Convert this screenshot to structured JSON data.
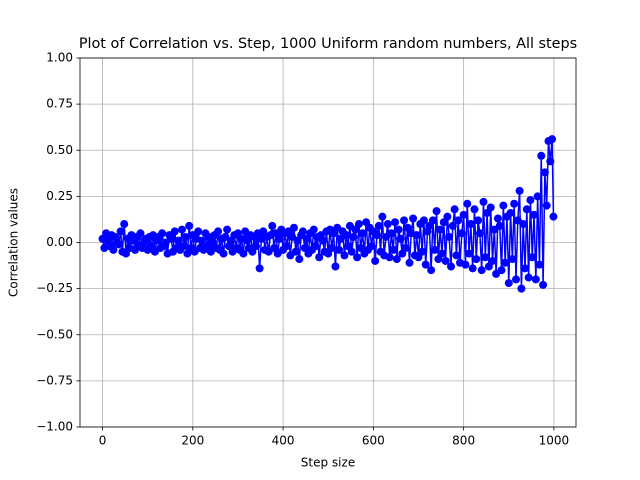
{
  "chart_data": {
    "type": "line",
    "title": "Plot of Correlation vs. Step, 1000 Uniform random numbers, All steps",
    "x_label": "Step size",
    "y_label": "Correlation values",
    "xlim": [
      -49.95,
      1048.95
    ],
    "xticks": [
      0,
      200,
      400,
      600,
      800,
      1000
    ],
    "ylim": [
      -1,
      1
    ],
    "yticks": [
      {
        "value": -1,
        "label": "−1.00"
      },
      {
        "value": -0.75,
        "label": "−0.75"
      },
      {
        "value": -0.5,
        "label": "−0.50"
      },
      {
        "value": -0.25,
        "label": "−0.25"
      },
      {
        "value": 0,
        "label": "0.00"
      },
      {
        "value": 0.25,
        "label": "0.25"
      },
      {
        "value": 0.5,
        "label": "0.50"
      },
      {
        "value": 0.75,
        "label": "0.75"
      },
      {
        "value": 1,
        "label": "1.00"
      }
    ],
    "grid": true,
    "marker": "o",
    "series": [
      {
        "color": "#0000ff",
        "x": [
          0,
          4,
          8,
          12,
          16,
          20,
          24,
          28,
          32,
          36,
          40,
          44,
          48,
          52,
          56,
          60,
          64,
          68,
          72,
          76,
          80,
          84,
          88,
          92,
          96,
          100,
          104,
          108,
          112,
          116,
          120,
          124,
          128,
          132,
          136,
          140,
          144,
          148,
          152,
          156,
          160,
          164,
          168,
          172,
          176,
          180,
          184,
          188,
          192,
          196,
          200,
          204,
          208,
          212,
          216,
          220,
          224,
          228,
          232,
          236,
          240,
          244,
          248,
          252,
          256,
          260,
          264,
          268,
          272,
          276,
          280,
          284,
          288,
          292,
          296,
          300,
          304,
          308,
          312,
          316,
          320,
          324,
          328,
          332,
          336,
          340,
          344,
          348,
          352,
          356,
          360,
          364,
          368,
          372,
          376,
          380,
          384,
          388,
          392,
          396,
          400,
          404,
          408,
          412,
          416,
          420,
          424,
          428,
          432,
          436,
          440,
          444,
          448,
          452,
          456,
          460,
          464,
          468,
          472,
          476,
          480,
          484,
          488,
          492,
          496,
          500,
          504,
          508,
          512,
          516,
          520,
          524,
          528,
          532,
          536,
          540,
          544,
          548,
          552,
          556,
          560,
          564,
          568,
          572,
          576,
          580,
          584,
          588,
          592,
          596,
          600,
          604,
          608,
          612,
          616,
          620,
          624,
          628,
          632,
          636,
          640,
          644,
          648,
          652,
          656,
          660,
          664,
          668,
          672,
          676,
          680,
          684,
          688,
          692,
          696,
          700,
          704,
          708,
          712,
          716,
          720,
          724,
          728,
          732,
          736,
          740,
          744,
          748,
          752,
          756,
          760,
          764,
          768,
          772,
          776,
          780,
          784,
          788,
          792,
          796,
          800,
          804,
          808,
          812,
          816,
          820,
          824,
          828,
          832,
          836,
          840,
          844,
          848,
          852,
          856,
          860,
          864,
          868,
          872,
          876,
          880,
          884,
          888,
          892,
          896,
          900,
          904,
          908,
          912,
          916,
          920,
          924,
          928,
          932,
          936,
          940,
          944,
          948,
          952,
          956,
          960,
          964,
          968,
          972,
          976,
          980,
          984,
          988,
          992,
          996,
          999
        ],
        "values": [
          0.02,
          -0.03,
          0.05,
          0.01,
          -0.02,
          0.04,
          -0.04,
          0.03,
          0.0,
          -0.01,
          0.06,
          -0.05,
          0.1,
          -0.06,
          0.02,
          -0.03,
          0.04,
          0.01,
          -0.04,
          0.03,
          -0.02,
          0.05,
          -0.03,
          0.0,
          0.02,
          -0.04,
          0.03,
          -0.02,
          0.04,
          -0.05,
          0.01,
          0.03,
          -0.03,
          0.05,
          -0.02,
          0.0,
          -0.06,
          0.04,
          0.02,
          -0.05,
          0.06,
          -0.03,
          0.01,
          -0.04,
          0.07,
          -0.02,
          0.03,
          -0.06,
          0.09,
          -0.03,
          0.04,
          -0.05,
          0.02,
          0.06,
          -0.03,
          0.01,
          -0.04,
          0.05,
          -0.02,
          0.03,
          -0.05,
          0.0,
          0.04,
          -0.03,
          0.06,
          -0.04,
          0.02,
          -0.06,
          0.03,
          0.07,
          -0.02,
          0.01,
          -0.05,
          0.04,
          -0.03,
          0.05,
          -0.04,
          0.02,
          -0.06,
          0.06,
          0.01,
          -0.03,
          0.04,
          -0.05,
          0.03,
          -0.02,
          0.05,
          -0.14,
          0.02,
          0.06,
          -0.04,
          0.03,
          -0.05,
          0.04,
          0.09,
          -0.03,
          0.05,
          -0.06,
          0.02,
          0.07,
          -0.04,
          0.05,
          -0.02,
          0.06,
          -0.07,
          0.03,
          0.08,
          -0.05,
          0.01,
          -0.09,
          0.04,
          0.06,
          -0.03,
          0.02,
          -0.06,
          0.05,
          -0.04,
          0.07,
          -0.02,
          0.03,
          -0.08,
          0.04,
          0.01,
          -0.05,
          0.06,
          -0.06,
          0.07,
          -0.03,
          0.05,
          -0.13,
          0.08,
          -0.04,
          0.02,
          0.06,
          -0.07,
          0.04,
          -0.02,
          0.09,
          -0.05,
          0.03,
          0.07,
          -0.08,
          0.1,
          -0.03,
          0.05,
          -0.06,
          0.11,
          -0.04,
          0.08,
          -0.02,
          0.06,
          -0.1,
          0.04,
          0.09,
          -0.05,
          0.14,
          -0.07,
          0.03,
          0.1,
          -0.08,
          0.05,
          -0.04,
          0.11,
          -0.09,
          0.07,
          0.02,
          -0.06,
          0.12,
          -0.03,
          0.08,
          -0.11,
          0.05,
          0.13,
          -0.07,
          0.04,
          -0.08,
          0.1,
          -0.05,
          0.12,
          -0.12,
          0.06,
          0.09,
          -0.15,
          0.12,
          -0.04,
          0.17,
          -0.09,
          0.07,
          -0.06,
          0.11,
          -0.1,
          0.14,
          0.03,
          -0.13,
          0.09,
          0.18,
          -0.07,
          0.12,
          -0.11,
          0.05,
          0.15,
          -0.12,
          0.21,
          -0.06,
          0.1,
          -0.14,
          0.18,
          -0.09,
          0.12,
          0.05,
          -0.15,
          0.22,
          -0.08,
          0.16,
          -0.13,
          0.19,
          -0.1,
          0.07,
          -0.17,
          0.13,
          0.09,
          -0.15,
          0.2,
          -0.11,
          0.14,
          -0.22,
          0.16,
          -0.09,
          0.21,
          -0.2,
          0.12,
          0.28,
          -0.25,
          0.1,
          -0.14,
          0.18,
          -0.19,
          0.23,
          -0.08,
          0.15,
          -0.2,
          0.25,
          -0.12,
          0.47,
          -0.23,
          0.38,
          0.2,
          0.55,
          0.44,
          0.56,
          0.14
        ]
      }
    ]
  }
}
